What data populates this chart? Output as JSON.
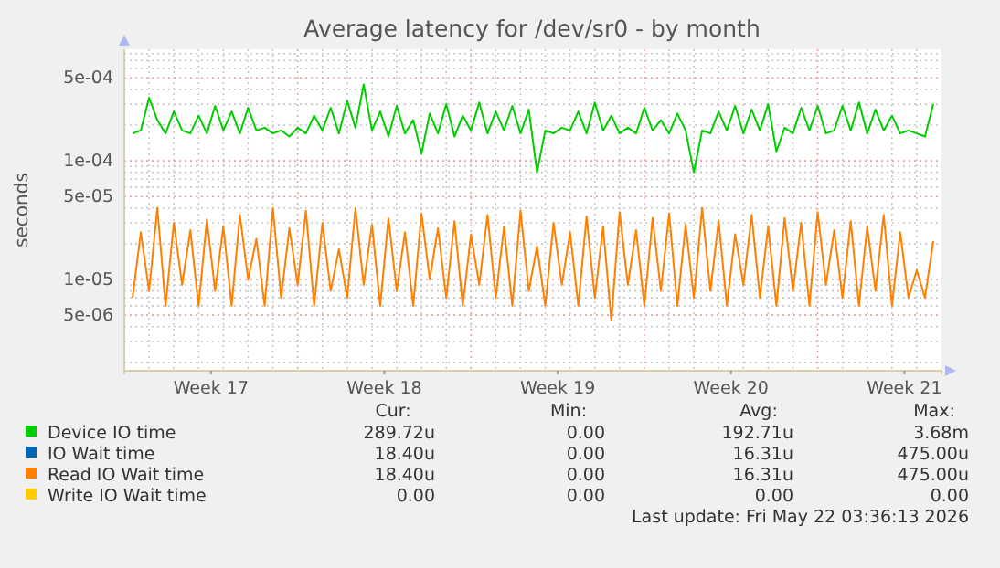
{
  "chart_data": {
    "type": "line",
    "title": "Average latency for /dev/sr0 - by month",
    "ylabel": "seconds",
    "log": true,
    "grid": true,
    "legend": "bottom",
    "marker": "none",
    "line_style": "solid",
    "xlim": [
      "2026-04-20T00:00",
      "2026-05-23T00:00"
    ],
    "xticks": [
      {
        "value": "2026-04-23T12:00",
        "label": "Week 17"
      },
      {
        "value": "2026-04-30T12:00",
        "label": "Week 18"
      },
      {
        "value": "2026-05-07T12:00",
        "label": "Week 19"
      },
      {
        "value": "2026-05-14T12:00",
        "label": "Week 20"
      },
      {
        "value": "2026-05-21T12:00",
        "label": "Week 21"
      }
    ],
    "ylim": [
      1.7e-06,
      0.00087
    ],
    "yticks": [
      {
        "value": 5e-06,
        "label": "5e-06"
      },
      {
        "value": 1e-05,
        "label": "1e-05"
      },
      {
        "value": 5e-05,
        "label": "5e-05"
      },
      {
        "value": 0.0001,
        "label": "1e-04"
      },
      {
        "value": 0.0005,
        "label": "5e-04"
      }
    ],
    "x": [
      "2026-04-20T08:00",
      "2026-04-20T16:00",
      "2026-04-21T00:00",
      "2026-04-21T08:00",
      "2026-04-21T16:00",
      "2026-04-22T00:00",
      "2026-04-22T08:00",
      "2026-04-22T16:00",
      "2026-04-23T00:00",
      "2026-04-23T08:00",
      "2026-04-23T16:00",
      "2026-04-24T00:00",
      "2026-04-24T08:00",
      "2026-04-24T16:00",
      "2026-04-25T00:00",
      "2026-04-25T08:00",
      "2026-04-25T16:00",
      "2026-04-26T00:00",
      "2026-04-26T08:00",
      "2026-04-26T16:00",
      "2026-04-27T00:00",
      "2026-04-27T08:00",
      "2026-04-27T16:00",
      "2026-04-28T00:00",
      "2026-04-28T08:00",
      "2026-04-28T16:00",
      "2026-04-29T00:00",
      "2026-04-29T08:00",
      "2026-04-29T16:00",
      "2026-04-30T00:00",
      "2026-04-30T08:00",
      "2026-04-30T16:00",
      "2026-05-01T00:00",
      "2026-05-01T08:00",
      "2026-05-01T16:00",
      "2026-05-02T00:00",
      "2026-05-02T08:00",
      "2026-05-02T16:00",
      "2026-05-03T00:00",
      "2026-05-03T08:00",
      "2026-05-03T16:00",
      "2026-05-04T00:00",
      "2026-05-04T08:00",
      "2026-05-04T16:00",
      "2026-05-05T00:00",
      "2026-05-05T08:00",
      "2026-05-05T16:00",
      "2026-05-06T00:00",
      "2026-05-06T08:00",
      "2026-05-06T16:00",
      "2026-05-07T00:00",
      "2026-05-07T08:00",
      "2026-05-07T16:00",
      "2026-05-08T00:00",
      "2026-05-08T08:00",
      "2026-05-08T16:00",
      "2026-05-09T00:00",
      "2026-05-09T08:00",
      "2026-05-09T16:00",
      "2026-05-10T00:00",
      "2026-05-10T08:00",
      "2026-05-10T16:00",
      "2026-05-11T00:00",
      "2026-05-11T08:00",
      "2026-05-11T16:00",
      "2026-05-12T00:00",
      "2026-05-12T08:00",
      "2026-05-12T16:00",
      "2026-05-13T00:00",
      "2026-05-13T08:00",
      "2026-05-13T16:00",
      "2026-05-14T00:00",
      "2026-05-14T08:00",
      "2026-05-14T16:00",
      "2026-05-15T00:00",
      "2026-05-15T08:00",
      "2026-05-15T16:00",
      "2026-05-16T00:00",
      "2026-05-16T08:00",
      "2026-05-16T16:00",
      "2026-05-17T00:00",
      "2026-05-17T08:00",
      "2026-05-17T16:00",
      "2026-05-18T00:00",
      "2026-05-18T08:00",
      "2026-05-18T16:00",
      "2026-05-19T00:00",
      "2026-05-19T08:00",
      "2026-05-19T16:00",
      "2026-05-20T00:00",
      "2026-05-20T08:00",
      "2026-05-20T16:00",
      "2026-05-21T00:00",
      "2026-05-21T08:00",
      "2026-05-21T16:00",
      "2026-05-22T00:00",
      "2026-05-22T08:00",
      "2026-05-22T16:00"
    ],
    "series": [
      {
        "name": "Device IO time",
        "color": "#00cc00",
        "values": [
          0.00017,
          0.00018,
          0.00034,
          0.00022,
          0.00017,
          0.00026,
          0.00018,
          0.00017,
          0.00024,
          0.00017,
          0.00029,
          0.00018,
          0.00026,
          0.00017,
          0.00028,
          0.00018,
          0.00019,
          0.00017,
          0.00018,
          0.00016,
          0.00019,
          0.00017,
          0.00024,
          0.00018,
          0.00028,
          0.00017,
          0.00032,
          0.00019,
          0.00044,
          0.00018,
          0.00026,
          0.00016,
          0.00029,
          0.00017,
          0.00022,
          0.000115,
          0.00025,
          0.00017,
          0.0003,
          0.00016,
          0.00024,
          0.00018,
          0.00031,
          0.00017,
          0.00026,
          0.00018,
          0.00029,
          0.00017,
          0.00027,
          8e-05,
          0.00018,
          0.00017,
          0.00019,
          0.00018,
          0.00026,
          0.00017,
          0.00031,
          0.00018,
          0.00024,
          0.00017,
          0.00019,
          0.00017,
          0.00028,
          0.00018,
          0.00022,
          0.00017,
          0.00025,
          0.00018,
          8e-05,
          0.00018,
          0.00017,
          0.00026,
          0.00018,
          0.00029,
          0.00017,
          0.00027,
          0.00018,
          0.0003,
          0.00012,
          0.00019,
          0.00017,
          0.00028,
          0.00018,
          0.00029,
          0.00017,
          0.00018,
          0.00029,
          0.00018,
          0.00031,
          0.00017,
          0.00027,
          0.00018,
          0.00024,
          0.00017,
          0.00018,
          0.00017,
          0.00016,
          0.0003
        ]
      },
      {
        "name": "IO Wait time",
        "color": "#0066b3",
        "values": [
          null,
          null,
          null,
          null,
          null,
          null,
          null,
          null,
          null,
          null,
          null,
          null,
          null,
          null,
          null,
          null,
          null,
          null,
          null,
          null,
          null,
          null,
          null,
          null,
          null,
          null,
          null,
          null,
          null,
          null,
          null,
          null,
          null,
          null,
          null,
          null,
          null,
          null,
          null,
          null,
          null,
          null,
          null,
          null,
          null,
          null,
          null,
          null,
          null,
          null,
          null,
          null,
          null,
          null,
          null,
          null,
          null,
          null,
          null,
          null,
          null,
          null,
          null,
          null,
          null,
          null,
          null,
          null,
          null,
          null,
          null,
          null,
          null,
          null,
          null,
          null,
          null,
          null,
          null,
          null,
          null,
          null,
          null,
          null,
          null,
          null,
          null,
          null,
          null,
          null,
          null,
          null,
          null,
          null,
          null,
          null,
          null,
          null
        ]
      },
      {
        "name": "Read IO Wait time",
        "color": "#ff8000",
        "values": [
          7e-06,
          2.5e-05,
          8e-06,
          4e-05,
          6e-06,
          3e-05,
          9e-06,
          2.6e-05,
          6e-06,
          3.2e-05,
          8e-06,
          2.8e-05,
          6e-06,
          3.5e-05,
          1e-05,
          2.2e-05,
          6e-06,
          4e-05,
          7e-06,
          2.7e-05,
          9e-06,
          3.8e-05,
          6e-06,
          3e-05,
          8e-06,
          1.8e-05,
          7e-06,
          4e-05,
          9e-06,
          2.9e-05,
          6e-06,
          3.3e-05,
          8e-06,
          2.5e-05,
          6e-06,
          3.6e-05,
          1e-05,
          2.7e-05,
          7e-06,
          3.1e-05,
          6e-06,
          2.4e-05,
          9e-06,
          3.5e-05,
          7e-06,
          2.8e-05,
          6e-06,
          3.8e-05,
          8e-06,
          1.9e-05,
          6e-06,
          3e-05,
          9e-06,
          2.5e-05,
          6e-06,
          3.4e-05,
          7e-06,
          2.8e-05,
          4.5e-06,
          3.7e-05,
          9e-06,
          2.6e-05,
          6e-06,
          3.3e-05,
          8e-06,
          3.6e-05,
          6e-06,
          2.9e-05,
          7e-06,
          4e-05,
          8e-06,
          3.1e-05,
          6e-06,
          2.4e-05,
          9e-06,
          3.5e-05,
          7e-06,
          2.8e-05,
          6e-06,
          3.3e-05,
          8e-06,
          3e-05,
          6e-06,
          3.7e-05,
          9e-06,
          2.6e-05,
          7e-06,
          3.1e-05,
          6e-06,
          2.8e-05,
          8e-06,
          3.5e-05,
          6e-06,
          2.5e-05,
          7e-06,
          1.2e-05,
          7e-06,
          2.1e-05
        ]
      },
      {
        "name": "Write IO Wait time",
        "color": "#ffcc00",
        "values": [
          null,
          null,
          null,
          null,
          null,
          null,
          null,
          null,
          null,
          null,
          null,
          null,
          null,
          null,
          null,
          null,
          null,
          null,
          null,
          null,
          null,
          null,
          null,
          null,
          null,
          null,
          null,
          null,
          null,
          null,
          null,
          null,
          null,
          null,
          null,
          null,
          null,
          null,
          null,
          null,
          null,
          null,
          null,
          null,
          null,
          null,
          null,
          null,
          null,
          null,
          null,
          null,
          null,
          null,
          null,
          null,
          null,
          null,
          null,
          null,
          null,
          null,
          null,
          null,
          null,
          null,
          null,
          null,
          null,
          null,
          null,
          null,
          null,
          null,
          null,
          null,
          null,
          null,
          null,
          null,
          null,
          null,
          null,
          null,
          null,
          null,
          null,
          null,
          null,
          null,
          null,
          null,
          null,
          null,
          null,
          null,
          null,
          null
        ]
      }
    ],
    "annotations": [
      "Cur:",
      "Min:",
      "Avg:",
      "Max:",
      "289.72u",
      "0.00",
      "192.71u",
      "3.68m",
      "18.40u",
      "0.00",
      "16.31u",
      "475.00u",
      "18.40u",
      "0.00",
      "16.31u",
      "475.00u",
      "0.00",
      "0.00",
      "0.00",
      "0.00",
      "Last update: Fri May 22 03:36:13 2026"
    ]
  }
}
